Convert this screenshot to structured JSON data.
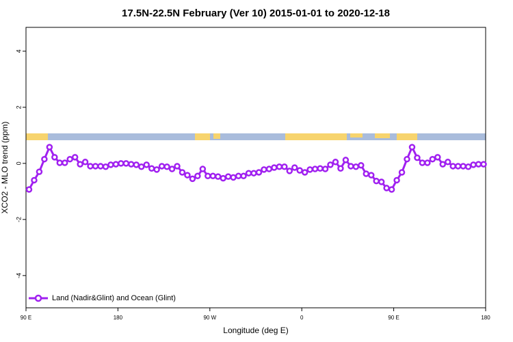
{
  "chart_data": {
    "type": "line",
    "title": "17.5N-22.5N February (Ver 10)   2015-01-01 to 2020-12-18",
    "x_label": "Longitude (deg E)",
    "y_label": "XCO2 - MLO trend (ppm)",
    "xlim": [
      90,
      540
    ],
    "ylim": [
      -5.15,
      4.85
    ],
    "xticks": [
      {
        "value": 90,
        "label": "90 E"
      },
      {
        "value": 180,
        "label": "180"
      },
      {
        "value": 270,
        "label": "90 W"
      },
      {
        "value": 360,
        "label": "0"
      },
      {
        "value": 450,
        "label": "90 E"
      },
      {
        "value": 540,
        "label": "180"
      }
    ],
    "yticks": [
      -4,
      -2,
      0,
      2,
      4
    ],
    "legend": "bottom-left",
    "x": [
      93,
      98,
      103,
      108,
      113,
      118,
      123,
      128,
      133,
      138,
      143,
      148,
      153,
      158,
      163,
      168,
      173,
      178,
      183,
      188,
      193,
      198,
      203,
      208,
      213,
      218,
      223,
      228,
      233,
      238,
      243,
      248,
      253,
      258,
      263,
      268,
      273,
      278,
      283,
      288,
      293,
      298,
      303,
      308,
      313,
      318,
      323,
      328,
      333,
      338,
      343,
      348,
      353,
      358,
      363,
      368,
      373,
      378,
      383,
      388,
      393,
      398,
      403,
      408,
      413,
      418,
      423,
      428,
      433,
      438,
      443,
      448,
      453,
      458,
      463,
      468,
      473,
      478,
      483,
      488,
      493,
      498,
      503,
      508,
      513,
      518,
      523,
      528,
      533,
      538
    ],
    "series": [
      {
        "name": "Land (Nadir&Glint) and Ocean (Glint)",
        "color": "#a020f0",
        "values": [
          -0.93,
          -0.6,
          -0.3,
          0.15,
          0.58,
          0.22,
          0.02,
          0.02,
          0.15,
          0.22,
          -0.03,
          0.05,
          -0.1,
          -0.1,
          -0.1,
          -0.12,
          -0.05,
          -0.03,
          0,
          0,
          -0.03,
          -0.05,
          -0.12,
          -0.05,
          -0.18,
          -0.22,
          -0.1,
          -0.12,
          -0.2,
          -0.1,
          -0.32,
          -0.42,
          -0.55,
          -0.45,
          -0.2,
          -0.45,
          -0.45,
          -0.47,
          -0.53,
          -0.47,
          -0.5,
          -0.45,
          -0.45,
          -0.35,
          -0.35,
          -0.32,
          -0.22,
          -0.2,
          -0.15,
          -0.12,
          -0.12,
          -0.27,
          -0.15,
          -0.25,
          -0.32,
          -0.22,
          -0.2,
          -0.18,
          -0.2,
          -0.05,
          0.05,
          -0.18,
          0.12,
          -0.1,
          -0.12,
          -0.07,
          -0.37,
          -0.42,
          -0.63,
          -0.66,
          -0.88,
          -0.93,
          -0.6,
          -0.32,
          0.15,
          0.58,
          0.2,
          0.02,
          0.02,
          0.15,
          0.22,
          -0.03,
          0.05,
          -0.1,
          -0.1,
          -0.1,
          -0.12,
          -0.05,
          -0.03,
          -0.03
        ]
      }
    ]
  }
}
